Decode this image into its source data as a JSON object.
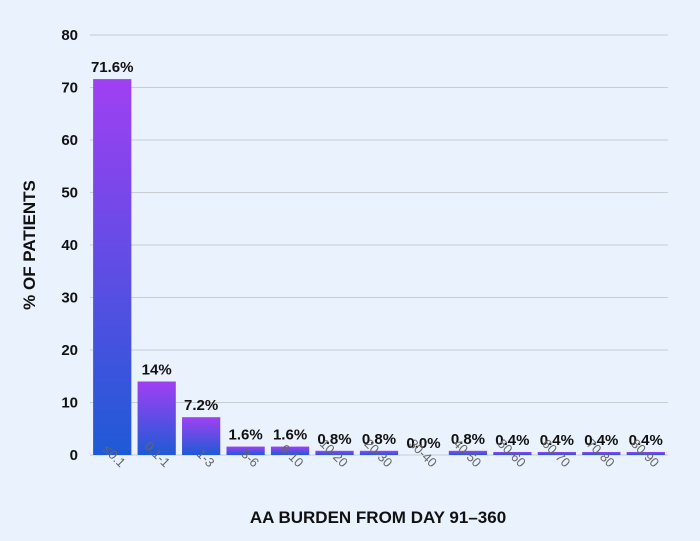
{
  "chart_data": {
    "type": "bar",
    "title": "",
    "xlabel": "AA BURDEN FROM DAY 91–360",
    "ylabel": "% OF PATIENTS",
    "categories": [
      "≤0.1",
      "0.1-1",
      "1-3",
      "3-6",
      "6-10",
      "10-20",
      "20-30",
      "30-40",
      "40-50",
      "50-60",
      "60-70",
      "70-80",
      "80-90"
    ],
    "values": [
      71.6,
      14,
      7.2,
      1.6,
      1.6,
      0.8,
      0.8,
      0.0,
      0.8,
      0.4,
      0.4,
      0.4,
      0.4
    ],
    "data_labels": [
      "71.6%",
      "14%",
      "7.2%",
      "1.6%",
      "1.6%",
      "0.8%",
      "0.8%",
      "0.0%",
      "0.8%",
      "0.4%",
      "0.4%",
      "0.4%",
      "0.4%"
    ],
    "yticks": [
      0,
      10,
      20,
      30,
      40,
      50,
      60,
      70,
      80
    ],
    "ylim": [
      0,
      80
    ],
    "grid": true,
    "legend": "none",
    "colors": {
      "background": "#e9f2fd",
      "bar_top": "#a040f2",
      "bar_bottom": "#1e5ad6",
      "grid": "#c8ccd3",
      "text": "#111111",
      "category_text": "#666666"
    }
  }
}
